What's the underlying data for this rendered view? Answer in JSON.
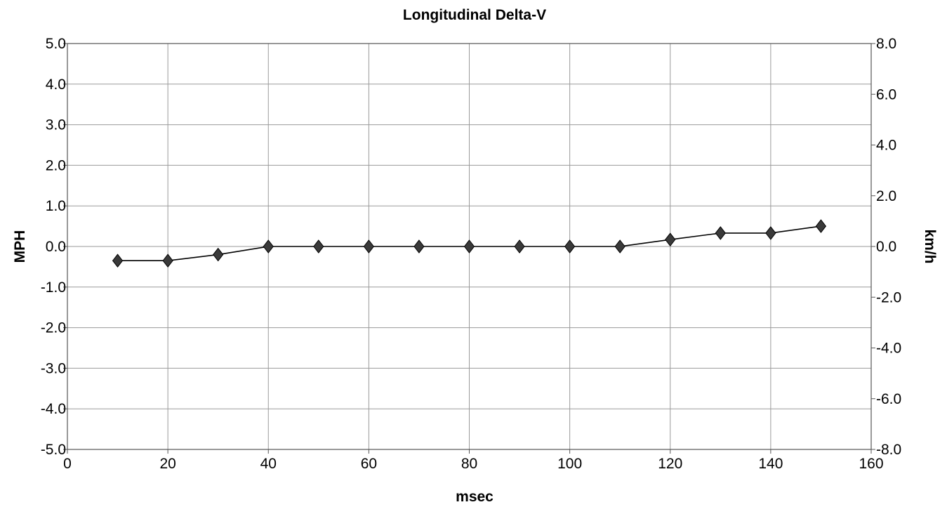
{
  "chart_data": {
    "type": "line",
    "title": "Longitudinal Delta-V",
    "xlabel": "msec",
    "ylabel": "MPH",
    "y2label": "km/h",
    "xlim": [
      0,
      160
    ],
    "ylim": [
      -5.0,
      5.0
    ],
    "y2lim": [
      -8.0,
      8.0
    ],
    "grid": true,
    "x_ticks": [
      "0",
      "20",
      "40",
      "60",
      "80",
      "100",
      "120",
      "140",
      "160"
    ],
    "y_ticks": [
      "5.0",
      "4.0",
      "3.0",
      "2.0",
      "1.0",
      "0.0",
      "-1.0",
      "-2.0",
      "-3.0",
      "-4.0",
      "-5.0"
    ],
    "y2_ticks": [
      "8.0",
      "6.0",
      "4.0",
      "2.0",
      "0.0",
      "-2.0",
      "-4.0",
      "-6.0",
      "-8.0"
    ],
    "series": [
      {
        "marker": "diamond",
        "color": "#3a3a3a",
        "x": [
          10,
          20,
          30,
          40,
          50,
          60,
          70,
          80,
          90,
          100,
          110,
          120,
          130,
          140,
          150
        ],
        "y": [
          -0.35,
          -0.35,
          -0.2,
          0.0,
          0.0,
          0.0,
          0.0,
          0.0,
          0.0,
          0.0,
          0.0,
          0.17,
          0.33,
          0.33,
          0.5
        ]
      }
    ]
  }
}
